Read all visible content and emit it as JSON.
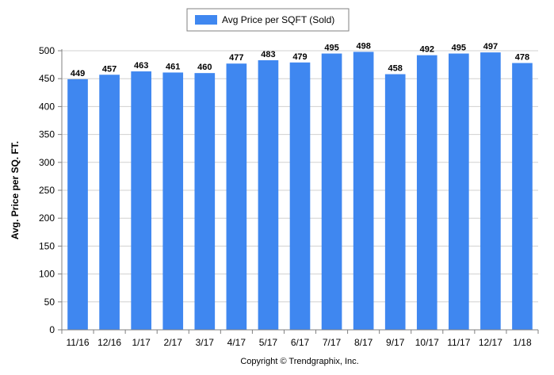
{
  "chart_data": {
    "type": "bar",
    "categories": [
      "11/16",
      "12/16",
      "1/17",
      "2/17",
      "3/17",
      "4/17",
      "5/17",
      "6/17",
      "7/17",
      "8/17",
      "9/17",
      "10/17",
      "11/17",
      "12/17",
      "1/18"
    ],
    "series": [
      {
        "name": "Avg Price per SQFT (Sold)",
        "values": [
          449,
          457,
          463,
          461,
          460,
          477,
          483,
          479,
          495,
          498,
          458,
          492,
          495,
          497,
          478
        ]
      }
    ],
    "ylabel": "Avg. Price per SQ. FT.",
    "xlabel": "",
    "ylim": [
      0,
      500
    ],
    "yticks": [
      0,
      50,
      100,
      150,
      200,
      250,
      300,
      350,
      400,
      450,
      500
    ],
    "grid": true,
    "legend": "top-center",
    "bar_color": "#3f87f0",
    "data_labels": true
  },
  "footer": {
    "copyright": "Copyright © Trendgraphix, Inc."
  }
}
